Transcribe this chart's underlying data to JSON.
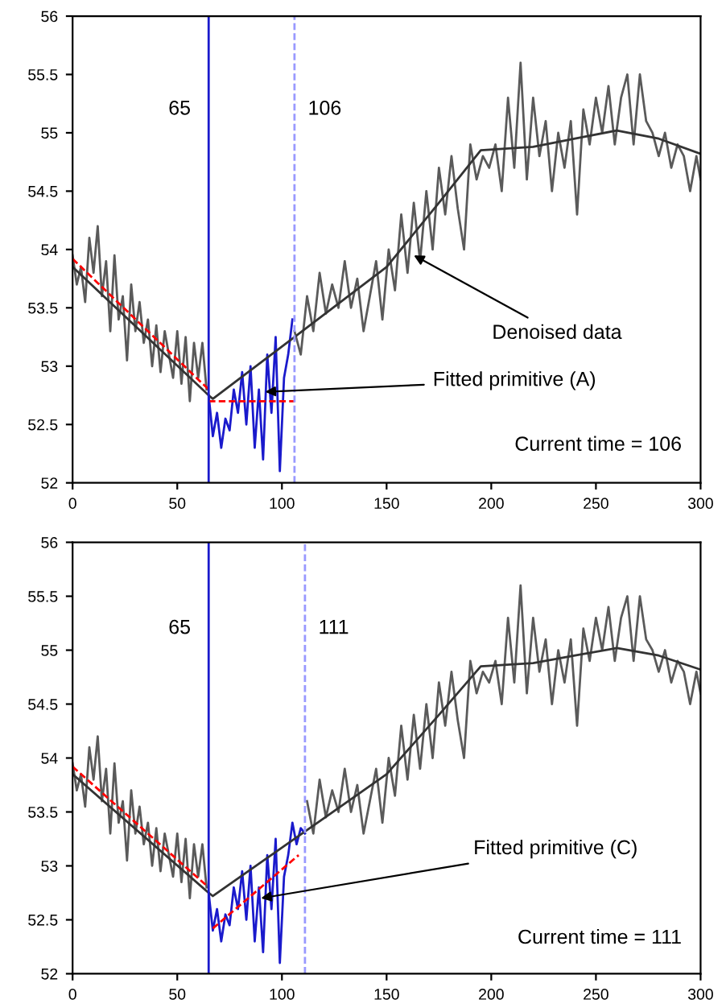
{
  "chart_data": [
    {
      "type": "line",
      "xlim": [
        0,
        300
      ],
      "ylim": [
        52,
        56
      ],
      "xticks": [
        0,
        50,
        100,
        150,
        200,
        250,
        300
      ],
      "yticks": [
        52,
        52.5,
        53,
        53.5,
        54,
        54.5,
        55,
        55.5,
        56
      ],
      "grid": false,
      "legend": false,
      "marker": "none",
      "series": [
        {
          "color": "#5a5a5a",
          "line_style": "solid",
          "x": [
            0,
            2,
            4,
            6,
            8,
            10,
            12,
            14,
            16,
            18,
            20,
            22,
            24,
            26,
            28,
            30,
            32,
            34,
            36,
            38,
            40,
            42,
            44,
            46,
            48,
            50,
            52,
            54,
            56,
            58,
            60,
            62,
            64
          ],
          "values": [
            53.95,
            53.7,
            53.85,
            53.55,
            54.1,
            53.8,
            54.2,
            53.6,
            53.9,
            53.3,
            53.95,
            53.4,
            53.6,
            53.05,
            53.7,
            53.3,
            53.55,
            53.2,
            53.4,
            53.0,
            53.35,
            52.95,
            53.3,
            53.1,
            52.9,
            53.3,
            52.85,
            53.25,
            52.7,
            53.2,
            52.9,
            53.2,
            52.8
          ]
        },
        {
          "color": "#1a1acc",
          "line_style": "solid",
          "x": [
            65,
            67,
            69,
            71,
            73,
            75,
            77,
            79,
            81,
            83,
            85,
            87,
            89,
            91,
            93,
            95,
            97,
            99,
            101,
            103,
            105
          ],
          "values": [
            52.75,
            52.4,
            52.6,
            52.3,
            52.55,
            52.45,
            52.8,
            52.6,
            52.95,
            52.5,
            53.0,
            52.3,
            52.8,
            52.2,
            53.1,
            52.6,
            53.25,
            52.1,
            52.9,
            53.1,
            53.4
          ]
        },
        {
          "color": "#5a5a5a",
          "line_style": "solid",
          "x": [
            106,
            109,
            112,
            115,
            118,
            121,
            124,
            127,
            130,
            133,
            136,
            139,
            142,
            145,
            148,
            151,
            154,
            157,
            160,
            163,
            166,
            169,
            172,
            175,
            178,
            181,
            184,
            187,
            190,
            193,
            196,
            199,
            202,
            205,
            208,
            211,
            214,
            217,
            220,
            223,
            226,
            229,
            232,
            235,
            238,
            241,
            244,
            247,
            250,
            253,
            256,
            259,
            262,
            265,
            268,
            271,
            274,
            277,
            280,
            283,
            286,
            289,
            292,
            295,
            298,
            300
          ],
          "values": [
            53.3,
            53.1,
            53.6,
            53.3,
            53.8,
            53.45,
            53.7,
            53.5,
            53.9,
            53.5,
            53.75,
            53.3,
            53.6,
            53.9,
            53.4,
            54.0,
            53.65,
            54.3,
            53.8,
            54.4,
            53.9,
            54.5,
            54.0,
            54.7,
            54.3,
            54.8,
            54.35,
            54.0,
            54.9,
            54.6,
            54.8,
            54.7,
            54.9,
            54.5,
            55.3,
            54.7,
            55.6,
            54.6,
            55.3,
            54.8,
            55.1,
            54.5,
            55.0,
            54.7,
            55.1,
            54.3,
            55.2,
            54.9,
            55.3,
            55.0,
            55.4,
            54.9,
            55.3,
            55.5,
            54.9,
            55.5,
            55.1,
            55.0,
            54.8,
            55.0,
            54.7,
            54.9,
            54.8,
            54.5,
            54.8,
            54.6
          ]
        },
        {
          "color": "#333333",
          "line_style": "solid",
          "x": [
            0,
            65,
            67,
            106,
            150,
            175,
            195,
            220,
            240,
            260,
            280,
            300
          ],
          "values": [
            53.85,
            52.75,
            52.72,
            53.25,
            53.85,
            54.4,
            54.85,
            54.88,
            54.95,
            55.02,
            54.95,
            54.82
          ]
        },
        {
          "color": "#ff0000",
          "line_style": "dashed",
          "x": [
            0,
            65
          ],
          "values": [
            53.92,
            52.8
          ]
        },
        {
          "color": "#ff0000",
          "line_style": "dashed",
          "x": [
            65,
            106
          ],
          "values": [
            52.7,
            52.7
          ]
        }
      ],
      "ref_lines": [
        {
          "axis": "x",
          "value": 65,
          "label": "65",
          "color": "#1a1acc",
          "line_style": "solid"
        },
        {
          "axis": "x",
          "value": 106,
          "label": "106",
          "color": "#9999ff",
          "line_style": "dashed"
        }
      ],
      "annotations": [
        {
          "text": "Denoised data",
          "x": 163,
          "y": 53.95
        },
        {
          "text": "Fitted primitive (A)",
          "x": 92,
          "y": 52.78
        },
        "Current time = 106"
      ]
    },
    {
      "type": "line",
      "xlim": [
        0,
        300
      ],
      "ylim": [
        52,
        56
      ],
      "xticks": [
        0,
        50,
        100,
        150,
        200,
        250,
        300
      ],
      "yticks": [
        52,
        52.5,
        53,
        53.5,
        54,
        54.5,
        55,
        55.5,
        56
      ],
      "grid": false,
      "legend": false,
      "marker": "none",
      "series": [
        {
          "color": "#5a5a5a",
          "line_style": "solid",
          "x": [
            0,
            2,
            4,
            6,
            8,
            10,
            12,
            14,
            16,
            18,
            20,
            22,
            24,
            26,
            28,
            30,
            32,
            34,
            36,
            38,
            40,
            42,
            44,
            46,
            48,
            50,
            52,
            54,
            56,
            58,
            60,
            62,
            64
          ],
          "values": [
            53.95,
            53.7,
            53.85,
            53.55,
            54.1,
            53.8,
            54.2,
            53.6,
            53.9,
            53.3,
            53.95,
            53.4,
            53.6,
            53.05,
            53.7,
            53.3,
            53.55,
            53.2,
            53.4,
            53.0,
            53.35,
            52.95,
            53.3,
            53.1,
            52.9,
            53.3,
            52.85,
            53.25,
            52.7,
            53.2,
            52.9,
            53.2,
            52.8
          ]
        },
        {
          "color": "#1a1acc",
          "line_style": "solid",
          "x": [
            65,
            67,
            69,
            71,
            73,
            75,
            77,
            79,
            81,
            83,
            85,
            87,
            89,
            91,
            93,
            95,
            97,
            99,
            101,
            103,
            105,
            107,
            109,
            111
          ],
          "values": [
            52.75,
            52.4,
            52.6,
            52.3,
            52.55,
            52.45,
            52.8,
            52.6,
            52.95,
            52.5,
            53.0,
            52.3,
            52.8,
            52.2,
            53.1,
            52.6,
            53.25,
            52.1,
            52.9,
            53.1,
            53.4,
            53.2,
            53.35,
            53.3
          ]
        },
        {
          "color": "#5a5a5a",
          "line_style": "solid",
          "x": [
            112,
            115,
            118,
            121,
            124,
            127,
            130,
            133,
            136,
            139,
            142,
            145,
            148,
            151,
            154,
            157,
            160,
            163,
            166,
            169,
            172,
            175,
            178,
            181,
            184,
            187,
            190,
            193,
            196,
            199,
            202,
            205,
            208,
            211,
            214,
            217,
            220,
            223,
            226,
            229,
            232,
            235,
            238,
            241,
            244,
            247,
            250,
            253,
            256,
            259,
            262,
            265,
            268,
            271,
            274,
            277,
            280,
            283,
            286,
            289,
            292,
            295,
            298,
            300
          ],
          "values": [
            53.6,
            53.3,
            53.8,
            53.45,
            53.7,
            53.5,
            53.9,
            53.5,
            53.75,
            53.3,
            53.6,
            53.9,
            53.4,
            54.0,
            53.65,
            54.3,
            53.8,
            54.4,
            53.9,
            54.5,
            54.0,
            54.7,
            54.3,
            54.8,
            54.35,
            54.0,
            54.9,
            54.6,
            54.8,
            54.7,
            54.9,
            54.5,
            55.3,
            54.7,
            55.6,
            54.6,
            55.3,
            54.8,
            55.1,
            54.5,
            55.0,
            54.7,
            55.1,
            54.3,
            55.2,
            54.9,
            55.3,
            55.0,
            55.4,
            54.9,
            55.3,
            55.5,
            54.9,
            55.5,
            55.1,
            55.0,
            54.8,
            55.0,
            54.7,
            54.9,
            54.8,
            54.5,
            54.8,
            54.6
          ]
        },
        {
          "color": "#333333",
          "line_style": "solid",
          "x": [
            0,
            65,
            67,
            106,
            150,
            175,
            195,
            220,
            240,
            260,
            280,
            300
          ],
          "values": [
            53.85,
            52.75,
            52.72,
            53.25,
            53.85,
            54.4,
            54.85,
            54.88,
            54.95,
            55.02,
            54.95,
            54.82
          ]
        },
        {
          "color": "#ff0000",
          "line_style": "dashed",
          "x": [
            0,
            65
          ],
          "values": [
            53.92,
            52.8
          ]
        },
        {
          "color": "#ff0000",
          "line_style": "dashed",
          "x": [
            67,
            108
          ],
          "values": [
            52.42,
            53.1
          ]
        }
      ],
      "ref_lines": [
        {
          "axis": "x",
          "value": 65,
          "label": "65",
          "color": "#1a1acc",
          "line_style": "solid"
        },
        {
          "axis": "x",
          "value": 111,
          "label": "111",
          "color": "#9999ff",
          "line_style": "dashed"
        }
      ],
      "annotations": [
        {
          "text": "Fitted primitive (C)",
          "x": 90,
          "y": 52.7
        },
        "Current time = 111"
      ]
    }
  ]
}
